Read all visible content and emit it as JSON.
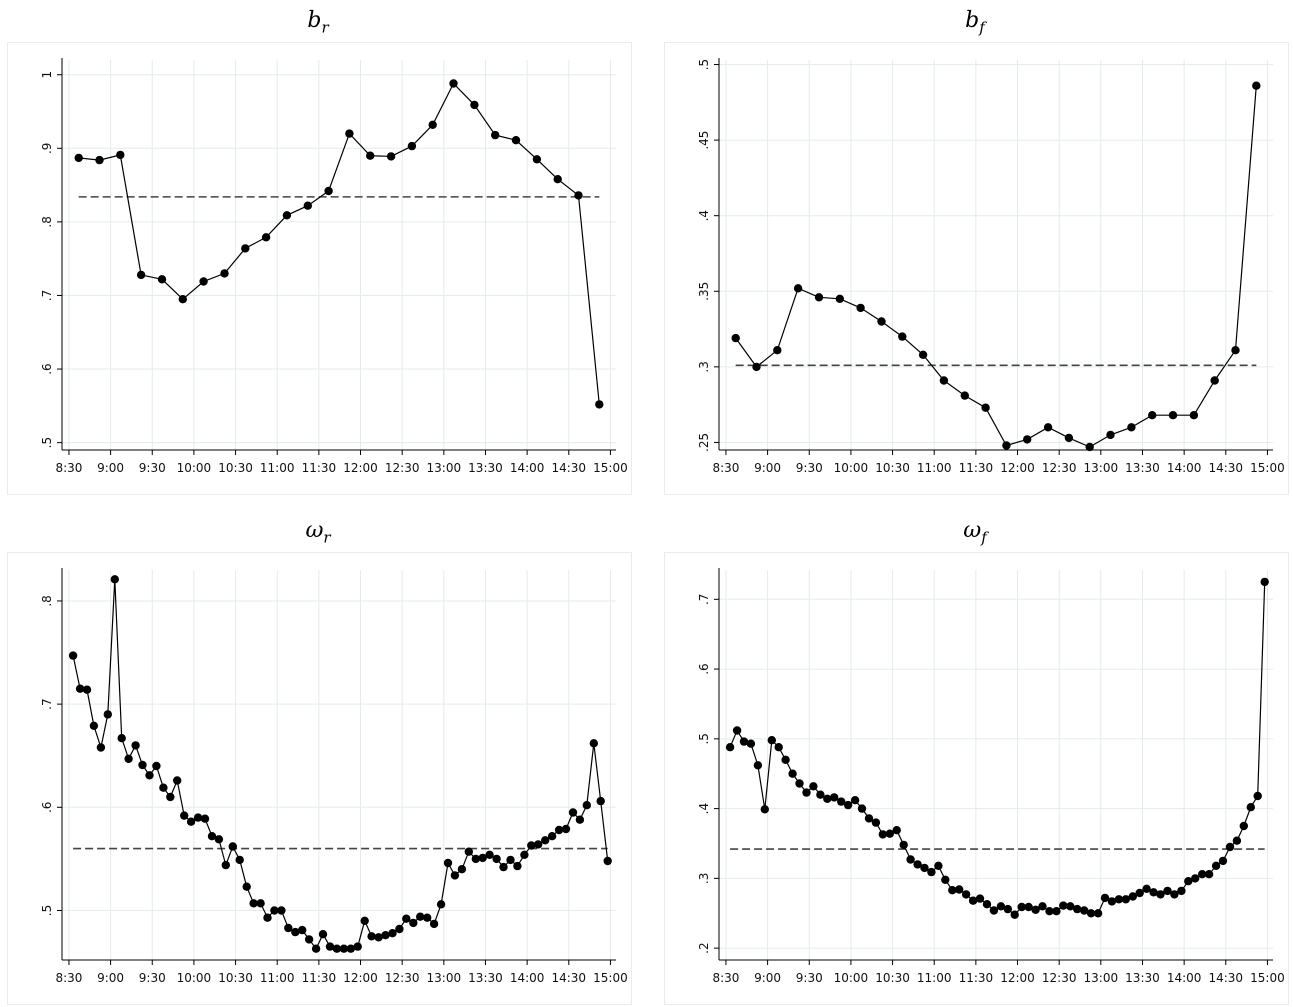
{
  "chart_data": [
    {
      "type": "line",
      "title_base": "b",
      "title_sub": "r",
      "y_ticks": [
        ".5",
        ".6",
        ".7",
        ".8",
        ".9",
        "1"
      ],
      "y_tick_values": [
        0.5,
        0.6,
        0.7,
        0.8,
        0.9,
        1.0
      ],
      "ylim": [
        0.49,
        1.02
      ],
      "xlim": [
        "8:30",
        "15:00"
      ],
      "x_ticks": [
        "8:30",
        "9:00",
        "9:30",
        "10:00",
        "10:30",
        "11:00",
        "11:30",
        "12:00",
        "12:30",
        "13:00",
        "13:30",
        "14:00",
        "14:30",
        "15:00"
      ],
      "grid": true,
      "mean_line": 0.834,
      "series": [
        {
          "x": [
            "8:37",
            "8:52",
            "9:07",
            "9:22",
            "9:37",
            "9:52",
            "10:07",
            "10:22",
            "10:37",
            "10:52",
            "11:07",
            "11:22",
            "11:37",
            "11:52",
            "12:07",
            "12:22",
            "12:37",
            "12:52",
            "13:07",
            "13:22",
            "13:37",
            "13:52",
            "14:07",
            "14:22",
            "14:37",
            "14:52"
          ],
          "values": [
            0.887,
            0.884,
            0.891,
            0.728,
            0.722,
            0.695,
            0.719,
            0.73,
            0.764,
            0.779,
            0.809,
            0.822,
            0.842,
            0.92,
            0.89,
            0.889,
            0.903,
            0.932,
            0.988,
            0.959,
            0.918,
            0.911,
            0.885,
            0.858,
            0.836,
            0.552
          ]
        }
      ]
    },
    {
      "type": "line",
      "title_base": "b",
      "title_sub": "f",
      "y_ticks": [
        ".25",
        ".3",
        ".35",
        ".4",
        ".45",
        ".5"
      ],
      "y_tick_values": [
        0.25,
        0.3,
        0.35,
        0.4,
        0.45,
        0.5
      ],
      "ylim": [
        0.245,
        0.503
      ],
      "xlim": [
        "8:30",
        "15:00"
      ],
      "x_ticks": [
        "8:30",
        "9:00",
        "9:30",
        "10:00",
        "10:30",
        "11:00",
        "11:30",
        "12:00",
        "12:30",
        "13:00",
        "13:30",
        "14:00",
        "14:30",
        "15:00"
      ],
      "grid": true,
      "mean_line": 0.301,
      "series": [
        {
          "x": [
            "8:37",
            "8:52",
            "9:07",
            "9:22",
            "9:37",
            "9:52",
            "10:07",
            "10:22",
            "10:37",
            "10:52",
            "11:07",
            "11:22",
            "11:37",
            "11:52",
            "12:07",
            "12:22",
            "12:37",
            "12:52",
            "13:07",
            "13:22",
            "13:37",
            "13:52",
            "14:07",
            "14:22",
            "14:37",
            "14:52"
          ],
          "values": [
            0.319,
            0.3,
            0.311,
            0.352,
            0.346,
            0.345,
            0.339,
            0.33,
            0.32,
            0.308,
            0.291,
            0.281,
            0.273,
            0.248,
            0.252,
            0.26,
            0.253,
            0.247,
            0.255,
            0.26,
            0.268,
            0.268,
            0.268,
            0.291,
            0.311,
            0.486
          ]
        }
      ]
    },
    {
      "type": "line",
      "title_base": "ω",
      "title_sub": "r",
      "y_ticks": [
        ".5",
        ".6",
        ".7",
        ".8"
      ],
      "y_tick_values": [
        0.5,
        0.6,
        0.7,
        0.8
      ],
      "ylim": [
        0.452,
        0.83
      ],
      "xlim": [
        "8:30",
        "15:00"
      ],
      "x_ticks": [
        "8:30",
        "9:00",
        "9:30",
        "10:00",
        "10:30",
        "11:00",
        "11:30",
        "12:00",
        "12:30",
        "13:00",
        "13:30",
        "14:00",
        "14:30",
        "15:00"
      ],
      "grid": true,
      "mean_line": 0.56,
      "series": [
        {
          "x_start": "8:33",
          "x_step_minutes": 5,
          "values": [
            0.747,
            0.715,
            0.714,
            0.679,
            0.658,
            0.69,
            0.821,
            0.667,
            0.647,
            0.66,
            0.641,
            0.631,
            0.64,
            0.619,
            0.61,
            0.626,
            0.592,
            0.586,
            0.59,
            0.589,
            0.572,
            0.569,
            0.544,
            0.562,
            0.549,
            0.523,
            0.507,
            0.507,
            0.493,
            0.5,
            0.5,
            0.483,
            0.479,
            0.481,
            0.472,
            0.463,
            0.477,
            0.465,
            0.463,
            0.463,
            0.463,
            0.465,
            0.49,
            0.475,
            0.474,
            0.476,
            0.478,
            0.482,
            0.492,
            0.488,
            0.494,
            0.493,
            0.487,
            0.506,
            0.546,
            0.534,
            0.54,
            0.557,
            0.55,
            0.551,
            0.554,
            0.55,
            0.542,
            0.549,
            0.543,
            0.554,
            0.563,
            0.564,
            0.568,
            0.572,
            0.578,
            0.579,
            0.595,
            0.588,
            0.602,
            0.662,
            0.606,
            0.548
          ]
        }
      ]
    },
    {
      "type": "line",
      "title_base": "ω",
      "title_sub": "f",
      "y_ticks": [
        ".2",
        ".3",
        ".4",
        ".5",
        ".6",
        ".7"
      ],
      "y_tick_values": [
        0.2,
        0.3,
        0.4,
        0.5,
        0.6,
        0.7
      ],
      "ylim": [
        0.183,
        0.742
      ],
      "xlim": [
        "8:30",
        "15:00"
      ],
      "x_ticks": [
        "8:30",
        "9:00",
        "9:30",
        "10:00",
        "10:30",
        "11:00",
        "11:30",
        "12:00",
        "12:30",
        "13:00",
        "13:30",
        "14:00",
        "14:30",
        "15:00"
      ],
      "grid": true,
      "mean_line": 0.342,
      "series": [
        {
          "x_start": "8:33",
          "x_step_minutes": 5,
          "values": [
            0.488,
            0.512,
            0.496,
            0.493,
            0.462,
            0.399,
            0.498,
            0.488,
            0.47,
            0.45,
            0.436,
            0.423,
            0.432,
            0.42,
            0.414,
            0.416,
            0.41,
            0.405,
            0.412,
            0.4,
            0.386,
            0.38,
            0.363,
            0.364,
            0.369,
            0.348,
            0.327,
            0.32,
            0.315,
            0.309,
            0.318,
            0.298,
            0.283,
            0.284,
            0.277,
            0.268,
            0.271,
            0.263,
            0.254,
            0.26,
            0.256,
            0.248,
            0.259,
            0.259,
            0.255,
            0.26,
            0.253,
            0.253,
            0.261,
            0.26,
            0.256,
            0.254,
            0.25,
            0.25,
            0.272,
            0.267,
            0.27,
            0.27,
            0.274,
            0.279,
            0.285,
            0.28,
            0.277,
            0.282,
            0.277,
            0.282,
            0.296,
            0.3,
            0.306,
            0.306,
            0.318,
            0.325,
            0.345,
            0.354,
            0.375,
            0.402,
            0.418,
            0.725
          ]
        }
      ]
    }
  ]
}
